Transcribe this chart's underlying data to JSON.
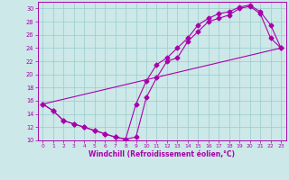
{
  "xlabel": "Windchill (Refroidissement éolien,°C)",
  "xlim": [
    -0.5,
    23.5
  ],
  "ylim": [
    10,
    31
  ],
  "xticks": [
    0,
    1,
    2,
    3,
    4,
    5,
    6,
    7,
    8,
    9,
    10,
    11,
    12,
    13,
    14,
    15,
    16,
    17,
    18,
    19,
    20,
    21,
    22,
    23
  ],
  "yticks": [
    10,
    12,
    14,
    16,
    18,
    20,
    22,
    24,
    26,
    28,
    30
  ],
  "bg_color": "#cce8e8",
  "line_color": "#aa00aa",
  "line1_x": [
    0,
    1,
    2,
    3,
    4,
    5,
    6,
    7,
    8,
    9,
    10,
    11,
    12,
    13,
    14,
    15,
    16,
    17,
    18,
    19,
    20,
    21,
    22,
    23
  ],
  "line1_y": [
    15.5,
    14.5,
    13.0,
    12.5,
    12.0,
    11.5,
    11.0,
    10.5,
    10.2,
    15.5,
    19.0,
    21.5,
    22.5,
    24.0,
    25.5,
    27.5,
    28.5,
    29.2,
    29.5,
    30.2,
    30.5,
    29.5,
    27.5,
    24.0
  ],
  "line2_x": [
    0,
    1,
    2,
    3,
    4,
    5,
    6,
    7,
    8,
    9,
    10,
    11,
    12,
    13,
    14,
    15,
    16,
    17,
    18,
    19,
    20,
    21,
    22,
    23
  ],
  "line2_y": [
    15.5,
    14.5,
    13.0,
    12.5,
    12.0,
    11.5,
    11.0,
    10.5,
    10.2,
    10.5,
    16.5,
    19.5,
    22.0,
    22.5,
    25.0,
    26.5,
    28.0,
    28.5,
    29.0,
    30.0,
    30.3,
    29.2,
    25.5,
    24.0
  ],
  "line3_x": [
    0,
    23
  ],
  "line3_y": [
    15.5,
    24.0
  ],
  "grid_color": "#99cccc",
  "marker": "D",
  "markersize": 2.5,
  "linewidth": 0.8
}
